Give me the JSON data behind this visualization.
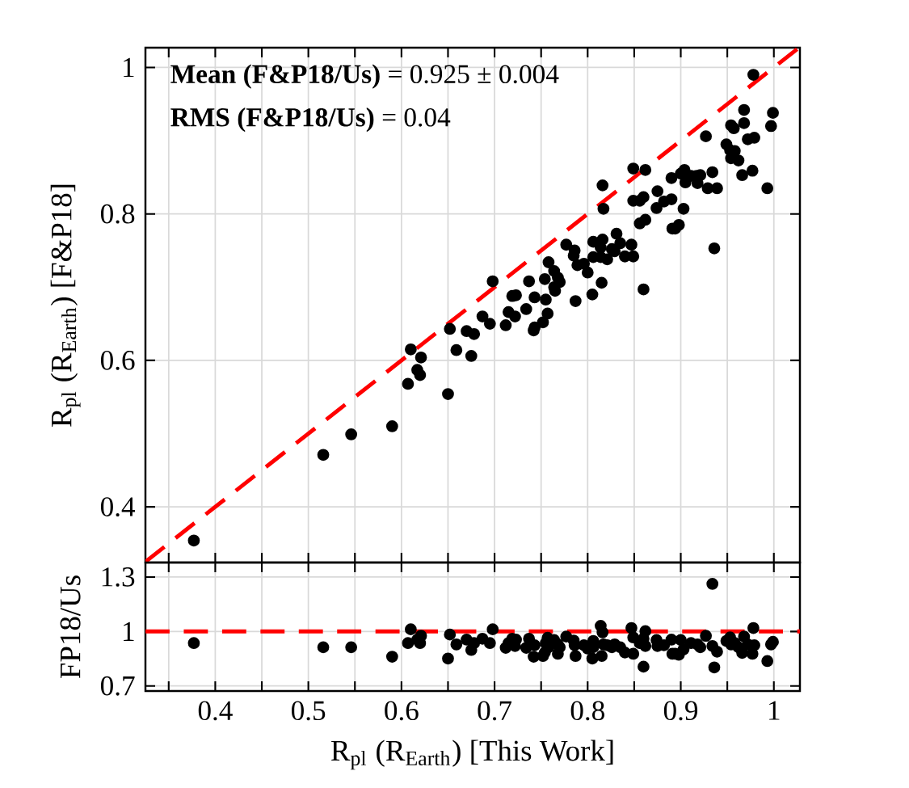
{
  "chart_data": [
    {
      "type": "scatter",
      "ylabel": "R$_{pl}$ (R$_{Earth}$) [F&P18]",
      "xlim": [
        0.325,
        1.028
      ],
      "ylim": [
        0.324,
        1.027
      ],
      "xticks": [
        {
          "value": 0.35,
          "label": null
        },
        0.4,
        {
          "value": 0.45,
          "label": null
        },
        0.5,
        {
          "value": 0.55,
          "label": null
        },
        0.6,
        {
          "value": 0.65,
          "label": null
        },
        0.7,
        {
          "value": 0.75,
          "label": null
        },
        0.8,
        {
          "value": 0.85,
          "label": null
        },
        0.9,
        {
          "value": 0.95,
          "label": null
        },
        1
      ],
      "yticks": [
        0.4,
        0.6,
        0.8,
        1
      ],
      "tick_labels": "y",
      "grid": true,
      "marker": "circle",
      "annotations": [
        "**Mean (F&P18/Us)** = 0.925 ± 0.004",
        "**RMS (F&P18/Us)** = 0.04"
      ],
      "series": [
        {
          "color": "#000000",
          "x": [
            0.978,
            0.999,
            0.968,
            0.997,
            0.968,
            0.954,
            0.957,
            0.927,
            0.979,
            0.972,
            0.949,
            0.953,
            0.958,
            0.954,
            0.962,
            0.966,
            0.977,
            0.993,
            0.929,
            0.939,
            0.934,
            0.904,
            0.9,
            0.905,
            0.911,
            0.917,
            0.921,
            0.918,
            0.89,
            0.875,
            0.882,
            0.89,
            0.903,
            0.849,
            0.862,
            0.816,
            0.817,
            0.849,
            0.856,
            0.86,
            0.862,
            0.856,
            0.874,
            0.894,
            0.891,
            0.898,
            0.936,
            0.777,
            0.786,
            0.785,
            0.789,
            0.796,
            0.8,
            0.806,
            0.816,
            0.814,
            0.806,
            0.814,
            0.821,
            0.826,
            0.829,
            0.831,
            0.835,
            0.847,
            0.84,
            0.849,
            0.815,
            0.86,
            0.758,
            0.764,
            0.768,
            0.77,
            0.754,
            0.737,
            0.698,
            0.764,
            0.765,
            0.805,
            0.787,
            0.719,
            0.723,
            0.743,
            0.755,
            0.734,
            0.715,
            0.722,
            0.757,
            0.752,
            0.743,
            0.742,
            0.712,
            0.687,
            0.695,
            0.652,
            0.67,
            0.678,
            0.659,
            0.675,
            0.61,
            0.621,
            0.617,
            0.62,
            0.607,
            0.65,
            0.59,
            0.546,
            0.516,
            0.377
          ],
          "values": [
            0.99,
            0.938,
            0.942,
            0.92,
            0.924,
            0.921,
            0.917,
            0.906,
            0.904,
            0.902,
            0.895,
            0.887,
            0.886,
            0.876,
            0.873,
            0.853,
            0.859,
            0.835,
            0.835,
            0.835,
            0.857,
            0.86,
            0.855,
            0.843,
            0.852,
            0.852,
            0.853,
            0.842,
            0.849,
            0.831,
            0.817,
            0.82,
            0.807,
            0.862,
            0.86,
            0.839,
            0.807,
            0.818,
            0.818,
            0.823,
            0.792,
            0.787,
            0.808,
            0.78,
            0.78,
            0.785,
            0.753,
            0.758,
            0.75,
            0.743,
            0.73,
            0.732,
            0.72,
            0.762,
            0.765,
            0.754,
            0.741,
            0.741,
            0.738,
            0.752,
            0.749,
            0.773,
            0.76,
            0.758,
            0.742,
            0.742,
            0.706,
            0.697,
            0.734,
            0.722,
            0.713,
            0.707,
            0.711,
            0.708,
            0.708,
            0.7,
            0.695,
            0.69,
            0.681,
            0.688,
            0.689,
            0.686,
            0.683,
            0.67,
            0.666,
            0.66,
            0.664,
            0.652,
            0.645,
            0.641,
            0.648,
            0.66,
            0.65,
            0.643,
            0.64,
            0.636,
            0.614,
            0.606,
            0.615,
            0.604,
            0.587,
            0.58,
            0.568,
            0.554,
            0.51,
            0.499,
            0.471,
            0.354
          ]
        },
        {
          "type": "line",
          "color": "#ff0000",
          "line_style": "dashed",
          "marker": "none",
          "x": [
            0.325,
            1.025
          ],
          "values": [
            0.325,
            1.025
          ]
        }
      ]
    },
    {
      "type": "scatter",
      "xlabel": "R$_{pl}$ (R$_{Earth}$) [This Work]",
      "ylabel": "FP18/Us",
      "xlim": [
        0.325,
        1.028
      ],
      "ylim": [
        0.672,
        1.38
      ],
      "xticks": [
        {
          "value": 0.35,
          "label": null
        },
        0.4,
        {
          "value": 0.45,
          "label": null
        },
        0.5,
        {
          "value": 0.55,
          "label": null
        },
        0.6,
        {
          "value": 0.65,
          "label": null
        },
        0.7,
        {
          "value": 0.75,
          "label": null
        },
        0.8,
        {
          "value": 0.85,
          "label": null
        },
        0.9,
        {
          "value": 0.95,
          "label": null
        },
        1
      ],
      "yticks": [
        0.7,
        1,
        1.3
      ],
      "grid": true,
      "marker": "circle",
      "ref_lines": [
        {
          "axis": "y",
          "value": 1,
          "color": "#ff0000",
          "line_style": "dashed"
        }
      ],
      "series": [
        {
          "color": "#000000",
          "x": [
            0.934,
            0.377,
            0.516,
            0.546,
            0.59,
            0.607,
            0.61,
            0.617,
            0.621,
            0.62,
            0.65,
            0.652,
            0.659,
            0.67,
            0.678,
            0.675,
            0.687,
            0.695,
            0.698,
            0.712,
            0.715,
            0.719,
            0.723,
            0.722,
            0.734,
            0.737,
            0.743,
            0.742,
            0.752,
            0.755,
            0.757,
            0.758,
            0.764,
            0.768,
            0.77,
            0.768,
            0.754,
            0.777,
            0.785,
            0.786,
            0.787,
            0.796,
            0.8,
            0.805,
            0.806,
            0.806,
            0.814,
            0.816,
            0.817,
            0.815,
            0.821,
            0.826,
            0.829,
            0.835,
            0.84,
            0.847,
            0.849,
            0.849,
            0.856,
            0.86,
            0.862,
            0.86,
            0.862,
            0.874,
            0.875,
            0.882,
            0.89,
            0.891,
            0.894,
            0.898,
            0.9,
            0.903,
            0.911,
            0.918,
            0.921,
            0.927,
            0.934,
            0.936,
            0.939,
            0.949,
            0.953,
            0.954,
            0.958,
            0.962,
            0.966,
            0.968,
            0.972,
            0.977,
            0.978,
            0.979,
            0.993,
            0.997,
            0.999
          ],
          "values": [
            1.262,
            0.936,
            0.913,
            0.913,
            0.861,
            0.936,
            1.012,
            0.955,
            0.976,
            0.936,
            0.851,
            0.983,
            0.929,
            0.955,
            0.936,
            0.898,
            0.96,
            0.936,
            1.012,
            0.91,
            0.936,
            0.96,
            0.955,
            0.92,
            0.91,
            0.96,
            0.924,
            0.861,
            0.865,
            0.936,
            0.965,
            0.913,
            0.953,
            0.929,
            0.913,
            0.877,
            0.884,
            0.972,
            0.95,
            0.924,
            0.865,
            0.924,
            0.906,
            0.851,
            0.948,
            0.913,
            1.031,
            0.995,
            0.929,
            0.865,
            0.924,
            0.913,
            0.929,
            0.913,
            0.884,
            1.019,
            0.967,
            0.877,
            0.936,
            0.96,
            1.002,
            0.806,
            0.92,
            0.953,
            0.92,
            0.924,
            0.955,
            0.877,
            0.877,
            0.872,
            0.953,
            0.901,
            0.936,
            0.929,
            0.913,
            0.976,
            0.92,
            0.802,
            0.889,
            0.948,
            0.967,
            0.929,
            0.936,
            0.913,
            0.882,
            0.972,
            0.929,
            0.877,
            1.019,
            0.924,
            0.837,
            0.929,
            0.943
          ]
        }
      ]
    }
  ]
}
